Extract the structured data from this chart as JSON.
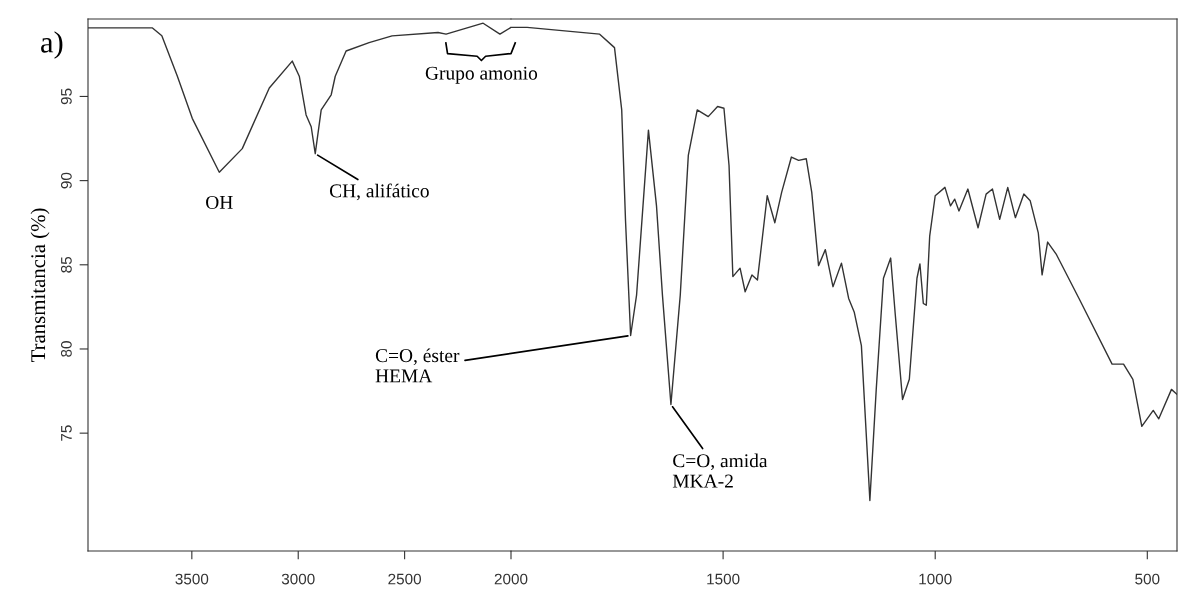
{
  "chart_data": [
    {
      "type": "line",
      "ylabel": "Transmitancia (%)",
      "xlim": [
        3988,
        2000
      ],
      "ylim": [
        68,
        99.6
      ],
      "xticks": [
        3500,
        3000,
        2500,
        2000
      ],
      "yticks": [
        75,
        80,
        85,
        90,
        95
      ],
      "grid": false,
      "marker": "none",
      "line_style": "solid",
      "annotations": [
        "a)",
        {
          "text": "OH",
          "x": 3371,
          "y": 90.5
        },
        {
          "text": "CH, alifático",
          "x": 2920,
          "y": 91.6
        },
        "Grupo amonio"
      ],
      "series": [
        {
          "color": "#333333",
          "x": [
            3988,
            3685,
            3641,
            3568,
            3498,
            3371,
            3263,
            3136,
            3028,
            2995,
            2963,
            2939,
            2920,
            2892,
            2845,
            2826,
            2775,
            2667,
            2559,
            2343,
            2305,
            2131,
            2052,
            2000
          ],
          "values": [
            99.07,
            99.07,
            98.6,
            96.2,
            93.7,
            90.5,
            91.9,
            95.5,
            97.1,
            96.2,
            93.9,
            93.2,
            91.6,
            94.2,
            95.1,
            96.2,
            97.7,
            98.2,
            98.6,
            98.8,
            98.7,
            99.35,
            98.7,
            99.1
          ]
        }
      ]
    },
    {
      "type": "line",
      "tick_labels": "x",
      "xlim": [
        2000,
        430
      ],
      "ylim": [
        68,
        99.6
      ],
      "xticks": [
        1500,
        1000,
        500
      ],
      "yticks": [
        75,
        80,
        85,
        90,
        95
      ],
      "grid": false,
      "marker": "none",
      "line_style": "solid",
      "annotations": [
        {
          "text": "C=O, éster\nHEMA",
          "x": 1718,
          "y": 80.8
        },
        {
          "text": "C=O, amida\nMKA-2",
          "x": 1623,
          "y": 76.7
        }
      ],
      "series": [
        {
          "color": "#333333",
          "x": [
            2000,
            1962,
            1791,
            1756,
            1739,
            1730,
            1718,
            1704,
            1676,
            1657,
            1643,
            1623,
            1601,
            1582,
            1561,
            1535,
            1513,
            1498,
            1486,
            1477,
            1460,
            1448,
            1432,
            1419,
            1396,
            1378,
            1362,
            1339,
            1322,
            1304,
            1291,
            1275,
            1259,
            1241,
            1221,
            1204,
            1191,
            1174,
            1154,
            1139,
            1122,
            1105,
            1094,
            1077,
            1061,
            1043,
            1036,
            1028,
            1021,
            1013,
            1000,
            977,
            964,
            954,
            944,
            923,
            899,
            880,
            865,
            848,
            829,
            811,
            791,
            776,
            757,
            748,
            735,
            714,
            661,
            583,
            556,
            534,
            513,
            486,
            473,
            443,
            430
          ],
          "values": [
            99.1,
            99.1,
            98.7,
            97.9,
            94.2,
            87.6,
            80.8,
            83.2,
            93.0,
            88.5,
            83.2,
            76.7,
            83.2,
            91.5,
            94.2,
            93.8,
            94.4,
            94.3,
            90.9,
            84.3,
            84.8,
            83.4,
            84.4,
            84.1,
            89.1,
            87.5,
            89.3,
            91.4,
            91.2,
            91.3,
            89.3,
            84.95,
            85.9,
            83.7,
            85.1,
            83.0,
            82.2,
            80.2,
            71.0,
            77.6,
            84.2,
            85.4,
            82.0,
            77.0,
            78.2,
            84.2,
            85.05,
            82.7,
            82.6,
            86.7,
            89.1,
            89.6,
            88.5,
            88.9,
            88.2,
            89.5,
            87.2,
            89.2,
            89.5,
            87.7,
            89.6,
            87.8,
            89.2,
            88.8,
            86.9,
            84.4,
            86.35,
            85.6,
            83.0,
            79.1,
            79.1,
            78.2,
            75.4,
            76.35,
            75.85,
            77.6,
            77.3
          ]
        }
      ]
    }
  ]
}
